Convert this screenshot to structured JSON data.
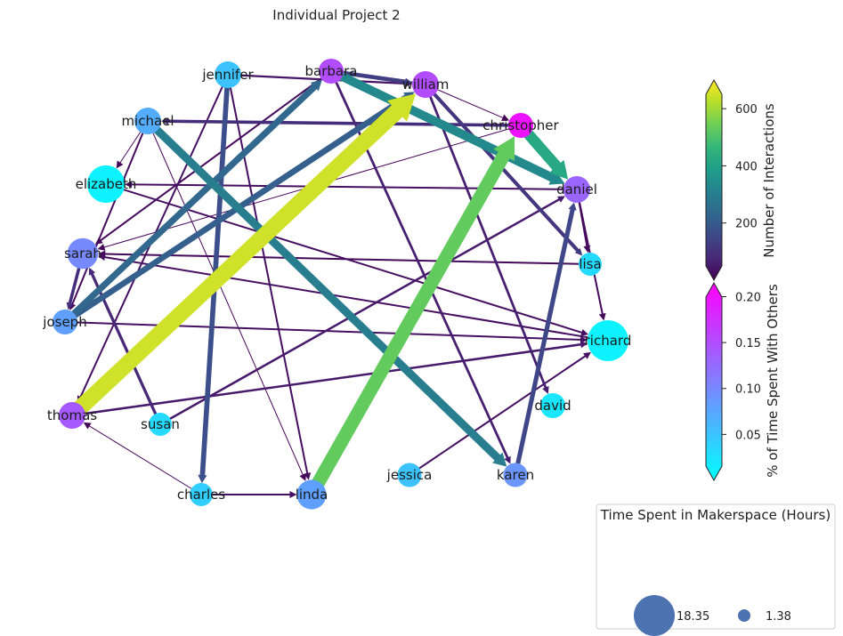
{
  "title": "Individual Project 2",
  "colors": {
    "viridis": [
      "#440154",
      "#482878",
      "#3e4989",
      "#31688e",
      "#26828e",
      "#1f9e89",
      "#35b779",
      "#6ece58",
      "#b5de2b",
      "#fde725"
    ],
    "cool": [
      "#00ffff",
      "#40bfff",
      "#8080ff",
      "#bf40ff",
      "#ff00ff"
    ],
    "legend_marker": "#4c72b0"
  },
  "nodes": [
    {
      "id": "jennifer",
      "label": "jennifer",
      "pct": 0.05,
      "size": 4
    },
    {
      "id": "barbara",
      "label": "barbara",
      "pct": 0.15,
      "size": 3
    },
    {
      "id": "william",
      "label": "william",
      "pct": 0.15,
      "size": 4
    },
    {
      "id": "christopher",
      "label": "christopher",
      "pct": 0.2,
      "size": 3
    },
    {
      "id": "michael",
      "label": "michael",
      "pct": 0.07,
      "size": 4
    },
    {
      "id": "elizabeth",
      "label": "elizabeth",
      "pct": 0.01,
      "size": 14
    },
    {
      "id": "daniel",
      "label": "daniel",
      "pct": 0.13,
      "size": 4
    },
    {
      "id": "lisa",
      "label": "lisa",
      "pct": 0.03,
      "size": 2
    },
    {
      "id": "sarah",
      "label": "sarah",
      "pct": 0.1,
      "size": 7
    },
    {
      "id": "joseph",
      "label": "joseph",
      "pct": 0.08,
      "size": 3
    },
    {
      "id": "richard",
      "label": "richard",
      "pct": 0.01,
      "size": 18.35
    },
    {
      "id": "thomas",
      "label": "thomas",
      "pct": 0.14,
      "size": 4
    },
    {
      "id": "susan",
      "label": "susan",
      "pct": 0.03,
      "size": 2
    },
    {
      "id": "david",
      "label": "david",
      "pct": 0.02,
      "size": 3
    },
    {
      "id": "charles",
      "label": "charles",
      "pct": 0.04,
      "size": 2
    },
    {
      "id": "linda",
      "label": "linda",
      "pct": 0.08,
      "size": 6
    },
    {
      "id": "jessica",
      "label": "jessica",
      "pct": 0.05,
      "size": 2.5
    },
    {
      "id": "karen",
      "label": "karen",
      "pct": 0.09,
      "size": 2.5
    }
  ],
  "edges": [
    {
      "source": "thomas",
      "target": "william",
      "weight": 650
    },
    {
      "source": "linda",
      "target": "christopher",
      "weight": 530
    },
    {
      "source": "christopher",
      "target": "daniel",
      "weight": 420
    },
    {
      "source": "barbara",
      "target": "daniel",
      "weight": 330
    },
    {
      "source": "michael",
      "target": "karen",
      "weight": 300
    },
    {
      "source": "joseph",
      "target": "barbara",
      "weight": 230
    },
    {
      "source": "joseph",
      "target": "william",
      "weight": 210
    },
    {
      "source": "jennifer",
      "target": "charles",
      "weight": 170
    },
    {
      "source": "karen",
      "target": "daniel",
      "weight": 150
    },
    {
      "source": "barbara",
      "target": "william",
      "weight": 130
    },
    {
      "source": "william",
      "target": "lisa",
      "weight": 110
    },
    {
      "source": "christopher",
      "target": "michael",
      "weight": 90
    },
    {
      "source": "sarah",
      "target": "joseph",
      "weight": 90
    },
    {
      "source": "susan",
      "target": "sarah",
      "weight": 80
    },
    {
      "source": "william",
      "target": "david",
      "weight": 60
    },
    {
      "source": "barbara",
      "target": "karen",
      "weight": 60
    },
    {
      "source": "susan",
      "target": "daniel",
      "weight": 50
    },
    {
      "source": "thomas",
      "target": "richard",
      "weight": 50
    },
    {
      "source": "jennifer",
      "target": "william",
      "weight": 40
    },
    {
      "source": "elizabeth",
      "target": "richard",
      "weight": 30
    },
    {
      "source": "richard",
      "target": "sarah",
      "weight": 30
    },
    {
      "source": "jennifer",
      "target": "thomas",
      "weight": 30
    },
    {
      "source": "jessica",
      "target": "richard",
      "weight": 30
    },
    {
      "source": "charles",
      "target": "linda",
      "weight": 30
    },
    {
      "source": "joseph",
      "target": "richard",
      "weight": 30
    },
    {
      "source": "daniel",
      "target": "elizabeth",
      "weight": 25
    },
    {
      "source": "jennifer",
      "target": "linda",
      "weight": 25
    },
    {
      "source": "michael",
      "target": "joseph",
      "weight": 20
    },
    {
      "source": "daniel",
      "target": "lisa",
      "weight": 20
    },
    {
      "source": "daniel",
      "target": "richard",
      "weight": 15
    },
    {
      "source": "lisa",
      "target": "sarah",
      "weight": 15
    },
    {
      "source": "barbara",
      "target": "sarah",
      "weight": 15
    },
    {
      "source": "william",
      "target": "christopher",
      "weight": 10
    },
    {
      "source": "michael",
      "target": "elizabeth",
      "weight": 10
    },
    {
      "source": "michael",
      "target": "linda",
      "weight": 10
    },
    {
      "source": "charles",
      "target": "thomas",
      "weight": 10
    },
    {
      "source": "christopher",
      "target": "sarah",
      "weight": 10
    }
  ],
  "colorbars": {
    "interactions": {
      "label": "Number of Interactions",
      "min": 0,
      "max": 700,
      "ticks": [
        {
          "value": 200,
          "label": "200"
        },
        {
          "value": 400,
          "label": "400"
        },
        {
          "value": 600,
          "label": "600"
        }
      ]
    },
    "time_pct": {
      "label": "% of Time Spent With Others",
      "min": 0,
      "max": 0.215,
      "ticks": [
        {
          "value": 0.05,
          "label": "0.05"
        },
        {
          "value": 0.1,
          "label": "0.10"
        },
        {
          "value": 0.15,
          "label": "0.15"
        },
        {
          "value": 0.2,
          "label": "0.20"
        }
      ]
    }
  },
  "legend": {
    "title": "Time Spent in Makerspace (Hours)",
    "items": [
      {
        "value": 18.35,
        "label": "18.35"
      },
      {
        "value": 1.38,
        "label": "1.38"
      }
    ]
  }
}
